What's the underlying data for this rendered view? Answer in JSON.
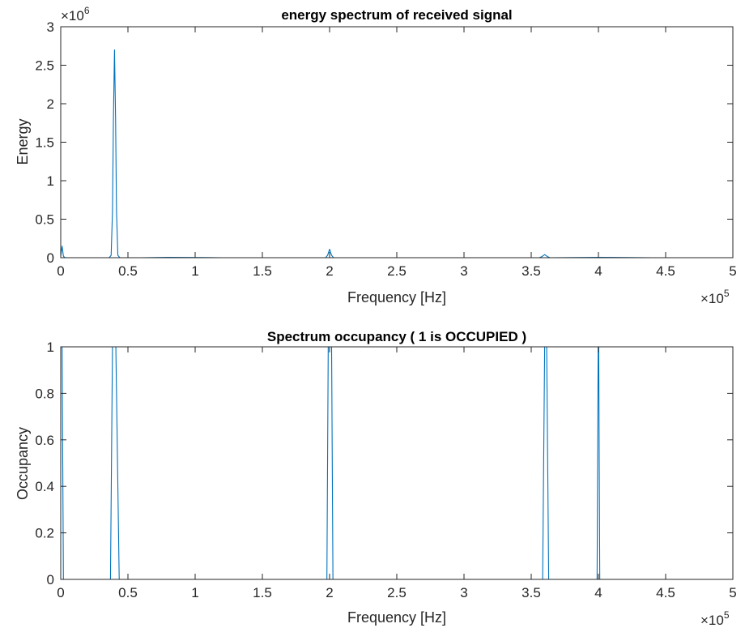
{
  "figure": {
    "background": "#ffffff"
  },
  "chart_data": [
    {
      "type": "line",
      "title": "energy spectrum of received signal",
      "xlabel": "Frequency [Hz]",
      "ylabel": "Energy",
      "x_multiplier": {
        "base": "×10",
        "exp": "5"
      },
      "y_multiplier": {
        "base": "×10",
        "exp": "6"
      },
      "xlim": [
        0,
        500000
      ],
      "ylim": [
        0,
        3000000
      ],
      "xticks": [
        0,
        50000,
        100000,
        150000,
        200000,
        250000,
        300000,
        350000,
        400000,
        450000,
        500000
      ],
      "xtick_labels": [
        "0",
        "0.5",
        "1",
        "1.5",
        "2",
        "2.5",
        "3",
        "3.5",
        "4",
        "4.5",
        "5"
      ],
      "yticks": [
        0,
        500000,
        1000000,
        1500000,
        2000000,
        2500000,
        3000000
      ],
      "ytick_labels": [
        "0",
        "0.5",
        "1",
        "1.5",
        "2",
        "2.5",
        "3"
      ],
      "grid": false,
      "series": [
        {
          "color": "#0072BD",
          "x": [
            0,
            1000,
            2000,
            3000,
            5000,
            20000,
            36000,
            37500,
            38500,
            39200,
            40000,
            40800,
            41500,
            42500,
            44000,
            60000,
            80000,
            120000,
            160000,
            197000,
            198500,
            200000,
            201500,
            203000,
            240000,
            280000,
            320000,
            356000,
            358000,
            360000,
            362000,
            364000,
            400000,
            440000,
            480000,
            500000
          ],
          "y": [
            20000,
            150000,
            20000,
            2000,
            0,
            0,
            0,
            30000,
            600000,
            1800000,
            2700000,
            1800000,
            600000,
            30000,
            0,
            0,
            5000,
            0,
            0,
            0,
            30000,
            110000,
            30000,
            0,
            0,
            0,
            0,
            0,
            15000,
            40000,
            15000,
            0,
            5000,
            0,
            0,
            0
          ]
        }
      ]
    },
    {
      "type": "line",
      "title": "Spectrum occupancy ( 1 is OCCUPIED )",
      "xlabel": "Frequency [Hz]",
      "ylabel": "Occupancy",
      "x_multiplier": {
        "base": "×10",
        "exp": "5"
      },
      "xlim": [
        0,
        500000
      ],
      "ylim": [
        0,
        1
      ],
      "xticks": [
        0,
        50000,
        100000,
        150000,
        200000,
        250000,
        300000,
        350000,
        400000,
        450000,
        500000
      ],
      "xtick_labels": [
        "0",
        "0.5",
        "1",
        "1.5",
        "2",
        "2.5",
        "3",
        "3.5",
        "4",
        "4.5",
        "5"
      ],
      "yticks": [
        0,
        0.2,
        0.4,
        0.6,
        0.8,
        1
      ],
      "ytick_labels": [
        "0",
        "0.2",
        "0.4",
        "0.6",
        "0.8",
        "1"
      ],
      "grid": false,
      "series": [
        {
          "color": "#0072BD",
          "x": [
            0,
            1000,
            2000,
            37000,
            38500,
            41000,
            43500,
            45000,
            198000,
            199000,
            201500,
            202500,
            358500,
            360000,
            361500,
            363000,
            399000,
            399800,
            400200,
            401000,
            500000
          ],
          "y": [
            1,
            1,
            0,
            0,
            1,
            1,
            0,
            0,
            0,
            1,
            1,
            0,
            0,
            1,
            1,
            0,
            0,
            1,
            1,
            0,
            0
          ]
        }
      ]
    }
  ]
}
